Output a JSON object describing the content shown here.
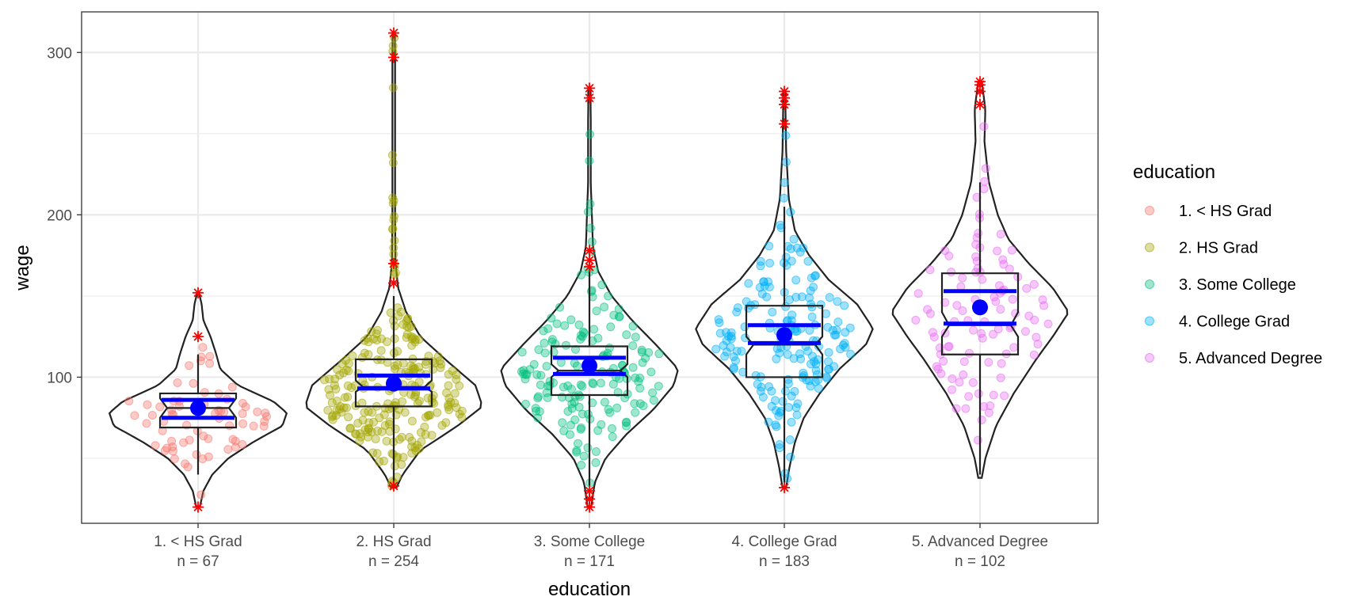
{
  "chart_data": {
    "type": "violin-boxplot",
    "xlabel": "education",
    "ylabel": "wage",
    "ylim": [
      10,
      325
    ],
    "yticks": [
      100,
      200,
      300
    ],
    "grid": true,
    "legend_position": "right",
    "legend_title": "education",
    "colors": {
      "1. < HS Grad": "#F8766D",
      "2. HS Grad": "#A3A500",
      "3. Some College": "#00BF7D",
      "4. College Grad": "#00B0F6",
      "5. Advanced Degree": "#E76BF3",
      "mean": "#0000FF",
      "outlier": "#FF0000"
    },
    "categories": [
      {
        "label": "1. < HS Grad",
        "n_label": "n =  67",
        "n": 67,
        "min": 40,
        "q1": 69,
        "median": 81,
        "q3": 90,
        "max": 114,
        "notch": [
          75,
          87
        ],
        "mean": 81,
        "mean_ci": [
          75,
          86
        ],
        "outliers": [
          20,
          125,
          152
        ],
        "violin_range": [
          20,
          152
        ],
        "violin_profile": [
          [
            20,
            0.02
          ],
          [
            30,
            0.06
          ],
          [
            40,
            0.16
          ],
          [
            50,
            0.34
          ],
          [
            60,
            0.62
          ],
          [
            70,
            0.95
          ],
          [
            78,
            1.0
          ],
          [
            85,
            0.85
          ],
          [
            95,
            0.45
          ],
          [
            105,
            0.25
          ],
          [
            115,
            0.2
          ],
          [
            125,
            0.14
          ],
          [
            135,
            0.06
          ],
          [
            145,
            0.04
          ],
          [
            152,
            0.01
          ]
        ]
      },
      {
        "label": "2. HS Grad",
        "n_label": "n =  254",
        "n": 254,
        "min": 35,
        "q1": 82,
        "median": 94,
        "q3": 111,
        "max": 150,
        "notch": [
          91,
          98
        ],
        "mean": 96,
        "mean_ci": [
          93,
          101
        ],
        "outliers": [
          33,
          158,
          170,
          297,
          312
        ],
        "violin_range": [
          32,
          312
        ],
        "violin_profile": [
          [
            32,
            0.03
          ],
          [
            40,
            0.1
          ],
          [
            55,
            0.3
          ],
          [
            70,
            0.72
          ],
          [
            82,
            1.0
          ],
          [
            95,
            0.92
          ],
          [
            110,
            0.6
          ],
          [
            125,
            0.3
          ],
          [
            140,
            0.14
          ],
          [
            155,
            0.05
          ],
          [
            170,
            0.02
          ],
          [
            200,
            0.015
          ],
          [
            250,
            0.015
          ],
          [
            300,
            0.015
          ],
          [
            312,
            0.01
          ]
        ]
      },
      {
        "label": "3. Some College",
        "n_label": "n =  171",
        "n": 171,
        "min": 33,
        "q1": 89,
        "median": 104,
        "q3": 119,
        "max": 165,
        "notch": [
          100,
          108
        ],
        "mean": 107,
        "mean_ci": [
          102,
          112
        ],
        "outliers": [
          20,
          25,
          30,
          168,
          172,
          178,
          272,
          278
        ],
        "violin_range": [
          20,
          278
        ],
        "violin_profile": [
          [
            20,
            0.02
          ],
          [
            35,
            0.06
          ],
          [
            50,
            0.18
          ],
          [
            65,
            0.42
          ],
          [
            80,
            0.72
          ],
          [
            95,
            0.95
          ],
          [
            105,
            1.0
          ],
          [
            120,
            0.75
          ],
          [
            135,
            0.48
          ],
          [
            150,
            0.25
          ],
          [
            165,
            0.1
          ],
          [
            180,
            0.04
          ],
          [
            220,
            0.015
          ],
          [
            260,
            0.015
          ],
          [
            278,
            0.01
          ]
        ]
      },
      {
        "label": "4. College Grad",
        "n_label": "n =  183",
        "n": 183,
        "min": 35,
        "q1": 100,
        "median": 120,
        "q3": 144,
        "max": 205,
        "notch": [
          114,
          125
        ],
        "mean": 126,
        "mean_ci": [
          121,
          132
        ],
        "outliers": [
          32,
          256,
          268,
          272,
          276
        ],
        "violin_range": [
          32,
          276
        ],
        "violin_profile": [
          [
            32,
            0.02
          ],
          [
            45,
            0.06
          ],
          [
            60,
            0.12
          ],
          [
            75,
            0.22
          ],
          [
            90,
            0.4
          ],
          [
            105,
            0.62
          ],
          [
            120,
            0.92
          ],
          [
            130,
            1.0
          ],
          [
            145,
            0.82
          ],
          [
            160,
            0.5
          ],
          [
            175,
            0.28
          ],
          [
            190,
            0.12
          ],
          [
            210,
            0.05
          ],
          [
            240,
            0.02
          ],
          [
            276,
            0.01
          ]
        ]
      },
      {
        "label": "5. Advanced Degree",
        "n_label": "n =  102",
        "n": 102,
        "min": 40,
        "q1": 114,
        "median": 132,
        "q3": 164,
        "max": 220,
        "notch": [
          125,
          140
        ],
        "mean": 143,
        "mean_ci": [
          133,
          153
        ],
        "outliers": [
          268,
          276,
          280,
          282
        ],
        "violin_range": [
          38,
          282
        ],
        "violin_profile": [
          [
            38,
            0.02
          ],
          [
            50,
            0.06
          ],
          [
            70,
            0.18
          ],
          [
            90,
            0.38
          ],
          [
            110,
            0.62
          ],
          [
            125,
            0.82
          ],
          [
            140,
            1.0
          ],
          [
            155,
            0.82
          ],
          [
            170,
            0.55
          ],
          [
            185,
            0.32
          ],
          [
            200,
            0.2
          ],
          [
            220,
            0.1
          ],
          [
            245,
            0.05
          ],
          [
            265,
            0.06
          ],
          [
            282,
            0.02
          ]
        ]
      }
    ],
    "legend": [
      "1. < HS Grad",
      "2. HS Grad",
      "3. Some College",
      "4. College Grad",
      "5. Advanced Degree"
    ]
  }
}
